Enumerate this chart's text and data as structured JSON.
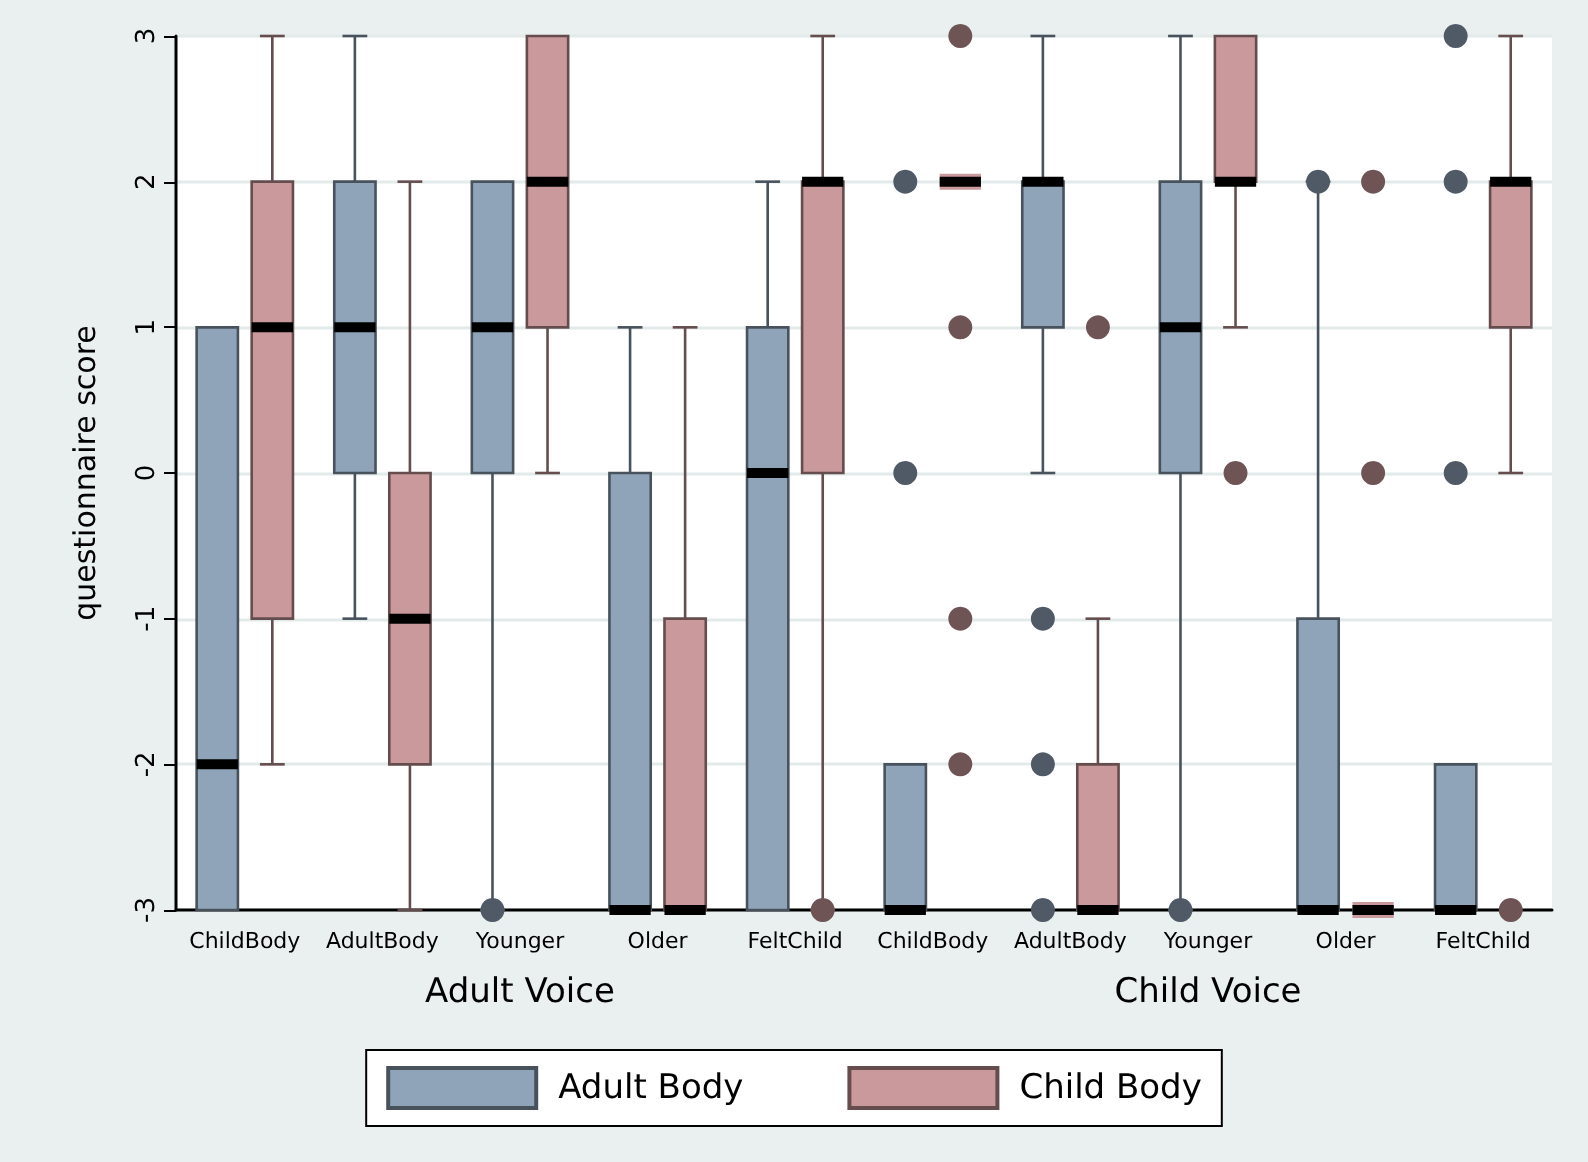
{
  "chart_data": {
    "type": "box",
    "ylabel": "questionnaire score",
    "categories": [
      "ChildBody",
      "AdultBody",
      "Younger",
      "Older",
      "FeltChild",
      "ChildBody",
      "AdultBody",
      "Younger",
      "Older",
      "FeltChild"
    ],
    "annotations": [
      "Adult Voice",
      "Child Voice"
    ],
    "ylim": [
      -3,
      3
    ],
    "yticks": [
      -3,
      -2,
      -1,
      0,
      1,
      2,
      3
    ],
    "grid": "y",
    "legend": "bottom",
    "marker": "circle",
    "series": [
      {
        "name": "Adult Body",
        "color": "#8fa4b9",
        "boxes": [
          {
            "low": -3,
            "q1": -3,
            "median": -2,
            "q3": 1,
            "high": 1
          },
          {
            "low": -1,
            "q1": 0,
            "median": 1,
            "q3": 2,
            "high": 3
          },
          {
            "low": -3,
            "q1": 0,
            "median": 1,
            "q3": 2,
            "high": 2,
            "outliers": [
              -3
            ]
          },
          {
            "low": -3,
            "q1": -3,
            "median": -3,
            "q3": 0,
            "high": 1
          },
          {
            "low": -3,
            "q1": -3,
            "median": 0,
            "q3": 1,
            "high": 2
          },
          {
            "low": -3,
            "q1": -3,
            "median": -3,
            "q3": -2,
            "high": -2,
            "outliers": [
              0,
              2
            ]
          },
          {
            "low": 0,
            "q1": 1,
            "median": 2,
            "q3": 2,
            "high": 3,
            "outliers": [
              -1,
              -2,
              -3
            ]
          },
          {
            "low": -3,
            "q1": 0,
            "median": 1,
            "q3": 2,
            "high": 3,
            "outliers": [
              -3
            ]
          },
          {
            "low": -3,
            "q1": -3,
            "median": -3,
            "q3": -1,
            "high": 2,
            "outliers": [
              2
            ]
          },
          {
            "low": -3,
            "q1": -3,
            "median": -3,
            "q3": -2,
            "high": -2,
            "outliers": [
              0,
              2,
              3
            ]
          }
        ]
      },
      {
        "name": "Child Body",
        "color": "#c9999c",
        "boxes": [
          {
            "low": -2,
            "q1": -1,
            "median": 1,
            "q3": 2,
            "high": 3
          },
          {
            "low": -3,
            "q1": -2,
            "median": -1,
            "q3": 0,
            "high": 2
          },
          {
            "low": 0,
            "q1": 1,
            "median": 2,
            "q3": 3,
            "high": 3
          },
          {
            "low": -3,
            "q1": -3,
            "median": -3,
            "q3": -1,
            "high": 1
          },
          {
            "low": -3,
            "q1": 0,
            "median": 2,
            "q3": 2,
            "high": 3,
            "outliers": [
              -3
            ]
          },
          {
            "low": 2,
            "q1": 2,
            "median": 2,
            "q3": 2,
            "high": 2,
            "outliers": [
              3,
              1,
              -1,
              -2
            ]
          },
          {
            "low": -3,
            "q1": -3,
            "median": -3,
            "q3": -2,
            "high": -1,
            "outliers": [
              1
            ]
          },
          {
            "low": 1,
            "q1": 2,
            "median": 2,
            "q3": 3,
            "high": 3,
            "outliers": [
              0
            ]
          },
          {
            "low": -3,
            "q1": -3,
            "median": -3,
            "q3": -3,
            "high": -3,
            "outliers": [
              2,
              0
            ]
          },
          {
            "low": 0,
            "q1": 1,
            "median": 2,
            "q3": 2,
            "high": 3,
            "outliers": [
              -3
            ]
          }
        ]
      }
    ]
  }
}
